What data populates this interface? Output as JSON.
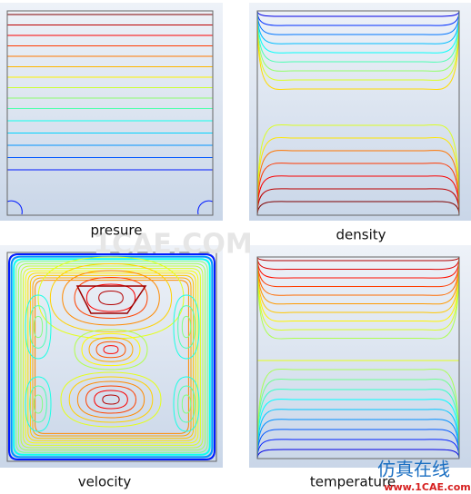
{
  "panels": [
    {
      "label": "presure"
    },
    {
      "label": "density"
    },
    {
      "label": "velocity"
    },
    {
      "label": "temperature"
    }
  ],
  "watermark": {
    "center": "1CAE.COM",
    "brand": "仿真在线",
    "url": "www.1CAE.com"
  }
}
